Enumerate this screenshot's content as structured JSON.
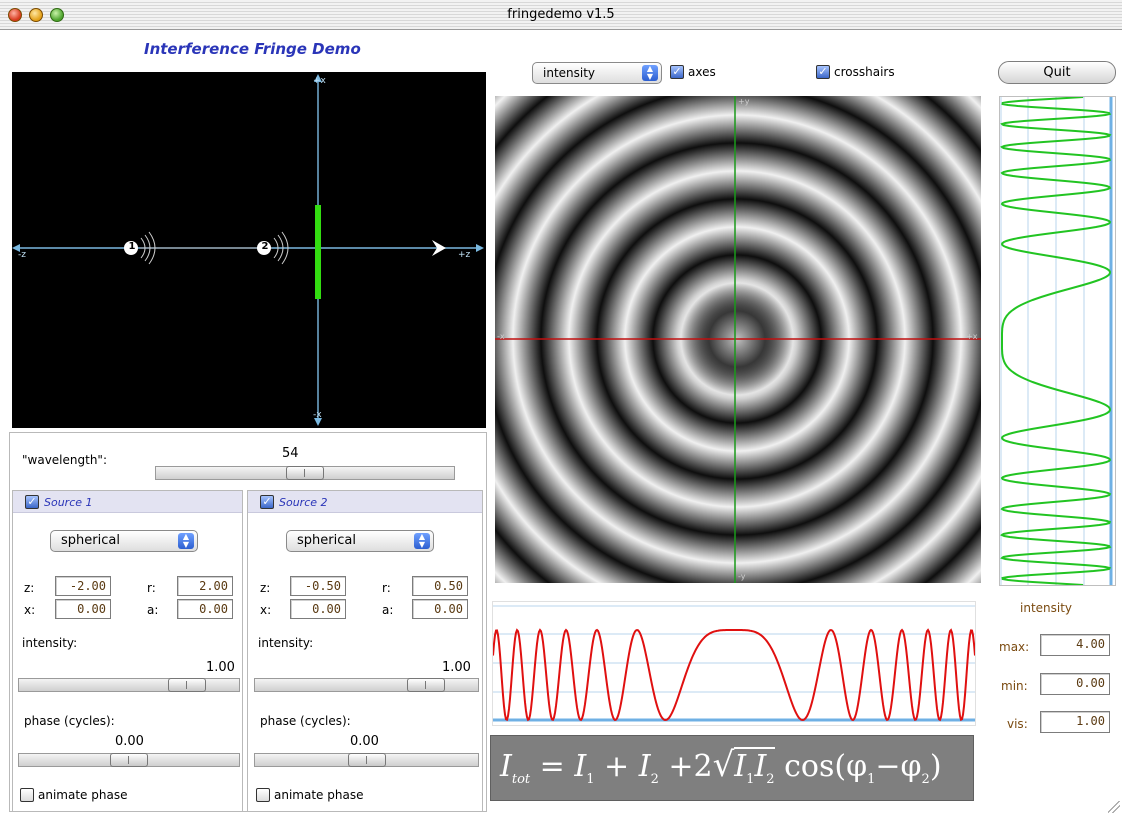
{
  "window": {
    "title": "fringedemo v1.5"
  },
  "app": {
    "heading": "Interference Fringe Demo"
  },
  "setup": {
    "axis_labels": {
      "plus_x": "+x",
      "minus_x": "-x",
      "minus_z": "-z",
      "plus_z": "+z"
    },
    "source1_number": "1",
    "source2_number": "2"
  },
  "controls": {
    "wavelength": {
      "label": "\"wavelength\":",
      "value": "54",
      "slider_fraction": 0.5
    },
    "source1": {
      "enabled": true,
      "title": "Source 1",
      "type": "spherical",
      "z": {
        "label": "z:",
        "value": "-2.00"
      },
      "r": {
        "label": "r:",
        "value": "2.00"
      },
      "x": {
        "label": "x:",
        "value": "0.00"
      },
      "a": {
        "label": "a:",
        "value": "0.00"
      },
      "intensity": {
        "label": "intensity:",
        "value": "1.00",
        "slider_fraction": 0.82
      },
      "phase": {
        "label": "phase (cycles):",
        "value": "0.00",
        "slider_fraction": 0.5
      },
      "animate": {
        "label": "animate phase",
        "checked": false
      }
    },
    "source2": {
      "enabled": true,
      "title": "Source 2",
      "type": "spherical",
      "z": {
        "label": "z:",
        "value": "-0.50"
      },
      "r": {
        "label": "r:",
        "value": "0.50"
      },
      "x": {
        "label": "x:",
        "value": "0.00"
      },
      "a": {
        "label": "a:",
        "value": "0.00"
      },
      "intensity": {
        "label": "intensity:",
        "value": "1.00",
        "slider_fraction": 0.82
      },
      "phase": {
        "label": "phase (cycles):",
        "value": "0.00",
        "slider_fraction": 0.5
      },
      "animate": {
        "label": "animate phase",
        "checked": false
      }
    }
  },
  "fringe": {
    "display_mode": "intensity",
    "axes": {
      "label": "axes",
      "checked": true
    },
    "crosshairs": {
      "label": "crosshairs",
      "checked": true
    },
    "axis_labels": {
      "plus_y": "+y",
      "minus_y": "-y",
      "plus_x": "+x",
      "minus_x": "-x"
    }
  },
  "quit_label": "Quit",
  "intensity_stats": {
    "heading": "intensity",
    "max": {
      "label": "max:",
      "value": "4.00"
    },
    "min": {
      "label": "min:",
      "value": "0.00"
    },
    "vis": {
      "label": "vis:",
      "value": "1.00"
    }
  },
  "colors": {
    "vertical_profile_curve": "#22c422",
    "horizontal_profile_curve": "#e01010",
    "crosshair_horizontal": "#c01010",
    "crosshair_vertical": "#1a9a1a",
    "setup_axis": "#7ab8e0",
    "detector": "#33dd11",
    "heading": "#2a35b8"
  },
  "equation": {
    "I": "I",
    "tot": "tot",
    "eq": " = ",
    "plus1": " + ",
    "plus2": " +2",
    "sub1": "1",
    "sub2": "2",
    "cos": "cos(",
    "phi": "φ",
    "minus": "−",
    "close": ")"
  }
}
